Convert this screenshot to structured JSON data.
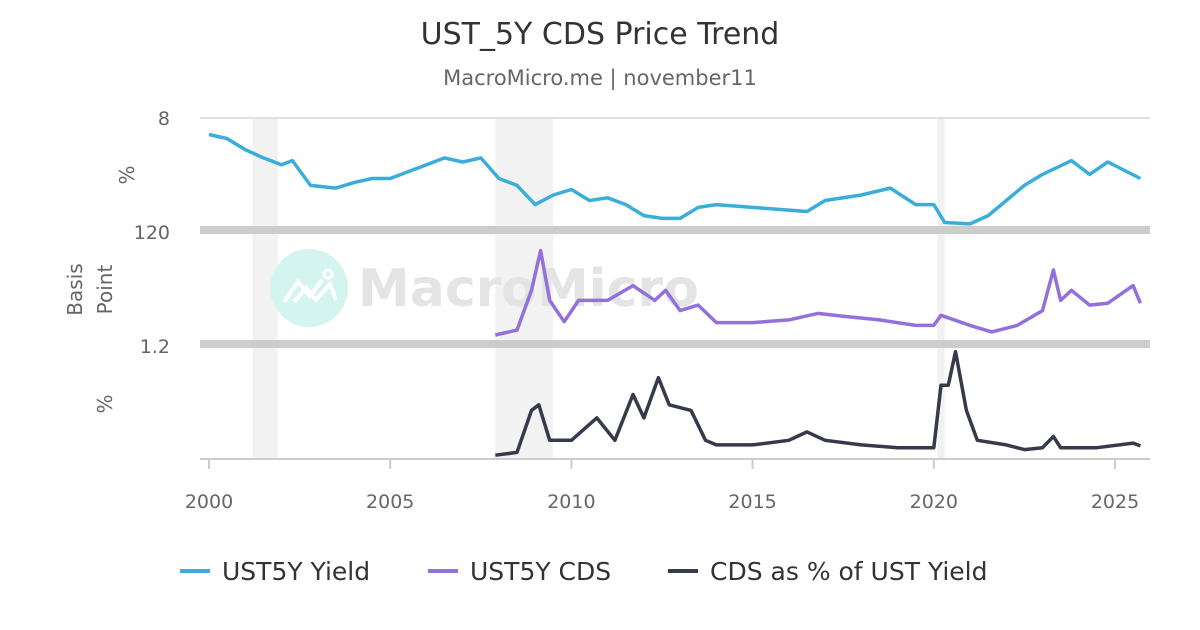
{
  "chart_data": {
    "type": "line",
    "title": "UST_5Y CDS Price Trend",
    "subtitle": "MacroMicro.me | november11",
    "watermark": "MacroMicro",
    "xlim": [
      2000,
      2025.8
    ],
    "x_ticks": [
      "2000",
      "2005",
      "2010",
      "2015",
      "2020",
      "2025"
    ],
    "recession_bands": [
      [
        2001.2,
        2001.9
      ],
      [
        2007.9,
        2009.5
      ],
      [
        2020.1,
        2020.3
      ]
    ],
    "panels": [
      {
        "ylabel": "%",
        "top_tick": "8",
        "ylim": [
          0,
          8
        ],
        "series_index": 0
      },
      {
        "ylabel": "Basis Point",
        "top_tick": "120",
        "ylim": [
          0,
          120
        ],
        "series_index": 1
      },
      {
        "ylabel": "%",
        "top_tick": "1.2",
        "ylim": [
          0,
          1.2
        ],
        "series_index": 2
      }
    ],
    "series": [
      {
        "name": "UST5Y Yield",
        "color": "#3aaed8",
        "x": [
          2000.0,
          2000.5,
          2001.0,
          2001.5,
          2002.0,
          2002.3,
          2002.8,
          2003.5,
          2004.0,
          2004.5,
          2005.0,
          2005.5,
          2006.0,
          2006.5,
          2007.0,
          2007.5,
          2008.0,
          2008.5,
          2009.0,
          2009.5,
          2010.0,
          2010.5,
          2011.0,
          2011.5,
          2012.0,
          2012.5,
          2013.0,
          2013.5,
          2014.0,
          2015.0,
          2016.0,
          2016.5,
          2017.0,
          2018.0,
          2018.8,
          2019.5,
          2020.0,
          2020.3,
          2021.0,
          2021.5,
          2022.0,
          2022.5,
          2023.0,
          2023.8,
          2024.3,
          2024.8,
          2025.7
        ],
        "values": [
          6.8,
          6.5,
          5.7,
          5.1,
          4.6,
          4.9,
          3.1,
          2.9,
          3.3,
          3.6,
          3.6,
          4.1,
          4.6,
          5.1,
          4.8,
          5.1,
          3.6,
          3.1,
          1.7,
          2.4,
          2.8,
          2.0,
          2.2,
          1.7,
          0.9,
          0.7,
          0.7,
          1.5,
          1.7,
          1.5,
          1.3,
          1.2,
          2.0,
          2.4,
          2.9,
          1.7,
          1.7,
          0.4,
          0.3,
          0.9,
          2.0,
          3.1,
          3.9,
          4.9,
          3.9,
          4.8,
          3.6
        ]
      },
      {
        "name": "UST5Y CDS",
        "color": "#9370db",
        "x": [
          2007.9,
          2008.5,
          2008.9,
          2009.15,
          2009.4,
          2009.8,
          2010.2,
          2011.0,
          2011.7,
          2012.3,
          2012.6,
          2013.0,
          2013.5,
          2014.0,
          2015.0,
          2016.0,
          2016.8,
          2017.5,
          2018.5,
          2019.5,
          2020.0,
          2020.2,
          2021.0,
          2021.6,
          2022.3,
          2023.0,
          2023.3,
          2023.5,
          2023.8,
          2024.3,
          2024.8,
          2025.5,
          2025.7
        ],
        "values": [
          8.6,
          14,
          57,
          100,
          46,
          23,
          46,
          46,
          62,
          46,
          57,
          35,
          41,
          22,
          22,
          25,
          32,
          29,
          25,
          19,
          19,
          30,
          19,
          12,
          19,
          35,
          79,
          46,
          57,
          41,
          43,
          62,
          43
        ]
      },
      {
        "name": "CDS as % of UST Yield",
        "color": "#363a4a",
        "x": [
          2007.9,
          2008.5,
          2008.9,
          2009.1,
          2009.4,
          2010.0,
          2010.7,
          2011.2,
          2011.7,
          2012.0,
          2012.4,
          2012.7,
          2013.3,
          2013.7,
          2014.0,
          2015.0,
          2016.0,
          2016.5,
          2017.0,
          2018.0,
          2019.0,
          2020.0,
          2020.2,
          2020.4,
          2020.6,
          2020.9,
          2021.2,
          2022.0,
          2022.5,
          2023.0,
          2023.3,
          2023.5,
          2024.5,
          2025.5,
          2025.7
        ],
        "values": [
          0.03,
          0.06,
          0.51,
          0.57,
          0.19,
          0.19,
          0.43,
          0.19,
          0.68,
          0.43,
          0.86,
          0.57,
          0.51,
          0.19,
          0.14,
          0.14,
          0.19,
          0.28,
          0.19,
          0.14,
          0.11,
          0.11,
          0.78,
          0.78,
          1.14,
          0.51,
          0.19,
          0.14,
          0.09,
          0.11,
          0.23,
          0.11,
          0.11,
          0.16,
          0.13
        ]
      }
    ],
    "legend": "bottom",
    "grid": false
  }
}
